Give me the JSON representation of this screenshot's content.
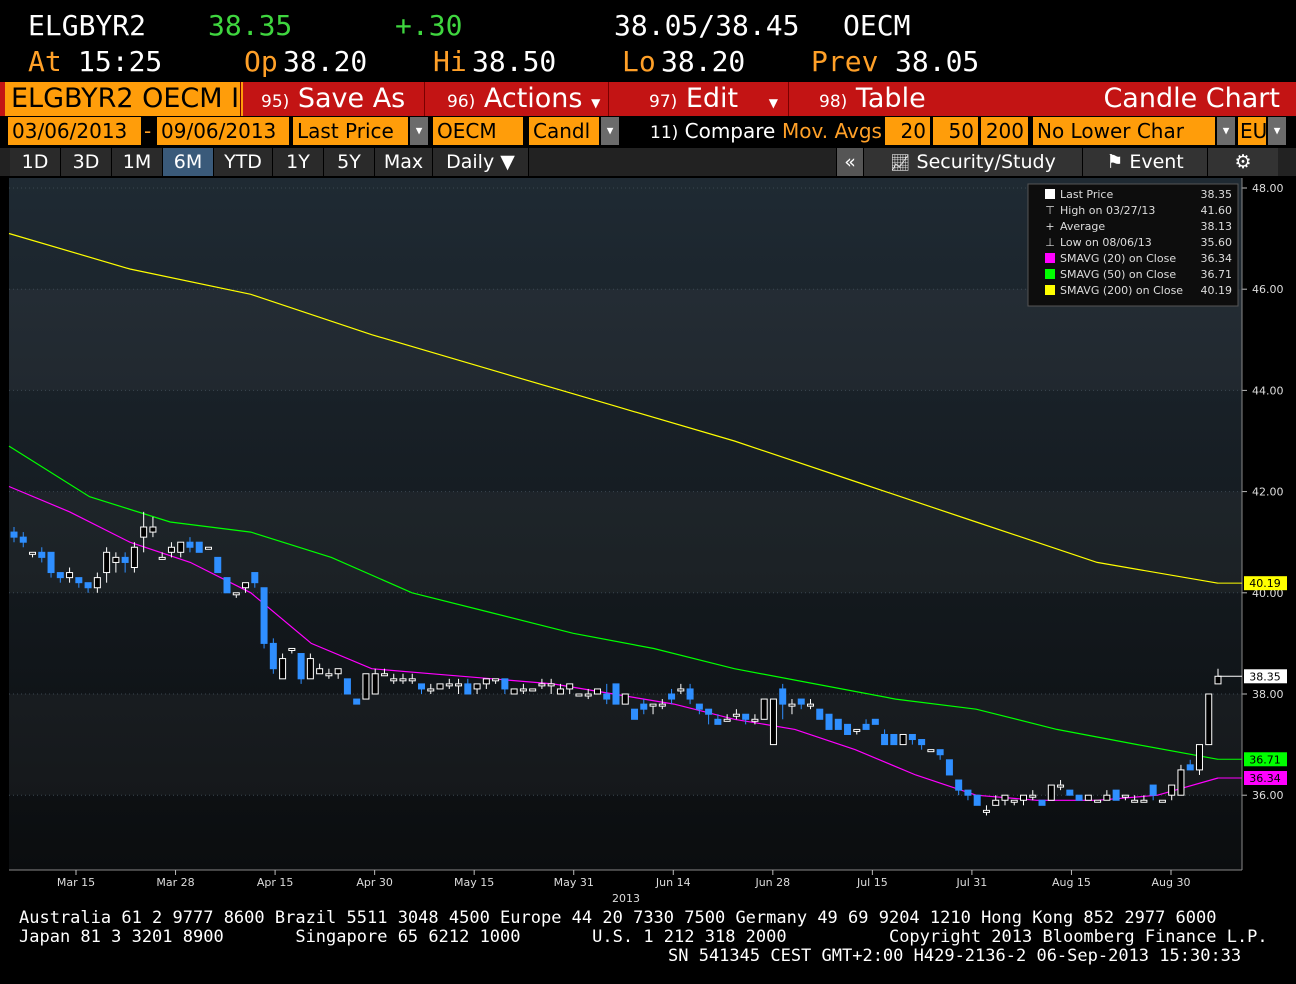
{
  "quote": {
    "ticker": "ELGBYR2",
    "last": "38.35",
    "change": "+.30",
    "bid_ask": "38.05/38.45",
    "source": "OECM",
    "at_label": "At",
    "time": "15:25",
    "open_label": "Op",
    "open": "38.20",
    "high_label": "Hi",
    "high": "38.50",
    "low_label": "Lo",
    "low": "38.20",
    "prev_label": "Prev",
    "prev": "38.05"
  },
  "toolbar": {
    "security": "ELGBYR2 OECM I",
    "save_num": "95)",
    "save_label": "Save As",
    "actions_num": "96)",
    "actions_label": "Actions",
    "edit_num": "97)",
    "edit_label": "Edit",
    "table_num": "98)",
    "table_label": "Table",
    "chart_type": "Candle Chart"
  },
  "params": {
    "start_date": "03/06/2013",
    "dash": "-",
    "end_date": "09/06/2013",
    "price_field": "Last Price",
    "source": "OECM",
    "chart_style": "Candl",
    "compare_num": "11)",
    "compare_label": "Compare",
    "mov_avgs_label": "Mov. Avgs",
    "ma1": "20",
    "ma2": "50",
    "ma3": "200",
    "lower_chart": "No Lower Char",
    "currency": "EUR"
  },
  "range": {
    "buttons": [
      "1D",
      "3D",
      "1M",
      "6M",
      "YTD",
      "1Y",
      "5Y",
      "Max"
    ],
    "active": "6M",
    "period": "Daily ▼",
    "collapse": "«",
    "security_study": "Security/Study",
    "event": "Event",
    "settings_icon": "gear-icon"
  },
  "legend": {
    "rows": [
      {
        "label": "Last Price",
        "value": "38.35",
        "color": "#ffffff"
      },
      {
        "label": "High on 03/27/13",
        "value": "41.60",
        "color": ""
      },
      {
        "label": "Average",
        "value": "38.13",
        "color": ""
      },
      {
        "label": "Low on 08/06/13",
        "value": "35.60",
        "color": ""
      },
      {
        "label": "SMAVG (20) on Close",
        "value": "36.34",
        "color": "#ff00ff"
      },
      {
        "label": "SMAVG (50) on Close",
        "value": "36.71",
        "color": "#00ff00"
      },
      {
        "label": "SMAVG (200) on Close",
        "value": "40.19",
        "color": "#ffff00"
      }
    ]
  },
  "chart_data": {
    "type": "candlestick",
    "y_ticks": [
      "36.00",
      "38.00",
      "40.00",
      "42.00",
      "44.00",
      "46.00",
      "48.00"
    ],
    "ylim": [
      34.5,
      48.1
    ],
    "x_ticks": [
      "Mar 15",
      "Mar 28",
      "Apr 15",
      "Apr 30",
      "May 15",
      "May 31",
      "Jun 14",
      "Jun 28",
      "Jul 15",
      "Jul 31",
      "Aug 15",
      "Aug 30"
    ],
    "year_label": "2013",
    "tags": [
      {
        "value": 40.19,
        "label": "40.19",
        "color": "#ffff00"
      },
      {
        "value": 38.35,
        "label": "38.35",
        "color": "#ffffff"
      },
      {
        "value": 36.71,
        "label": "36.71",
        "color": "#00ff00"
      },
      {
        "value": 36.34,
        "label": "36.34",
        "color": "#ff00ff"
      }
    ],
    "series": [
      {
        "name": "SMAVG (200) on Close",
        "color": "#ffff00",
        "values": [
          47.1,
          46.4,
          45.9,
          45.1,
          44.4,
          43.7,
          43.0,
          42.2,
          41.4,
          40.6,
          40.19
        ]
      },
      {
        "name": "SMAVG (50) on Close",
        "color": "#00ff00",
        "values": [
          42.9,
          41.9,
          41.4,
          41.2,
          40.7,
          40.0,
          39.6,
          39.2,
          38.9,
          38.5,
          38.2,
          37.9,
          37.7,
          37.3,
          37.0,
          36.71
        ]
      },
      {
        "name": "SMAVG (20) on Close",
        "color": "#ff00ff",
        "values": [
          42.1,
          41.6,
          41.0,
          40.6,
          40.0,
          39.0,
          38.5,
          38.4,
          38.3,
          38.2,
          38.0,
          37.8,
          37.5,
          37.3,
          36.9,
          36.4,
          36.0,
          35.9,
          35.9,
          36.0,
          36.34
        ]
      }
    ],
    "candles": [
      [
        41.2,
        41.3,
        41.0,
        41.1
      ],
      [
        41.1,
        41.2,
        40.9,
        41.0
      ],
      [
        40.8,
        40.8,
        40.7,
        40.8
      ],
      [
        40.8,
        40.9,
        40.6,
        40.7
      ],
      [
        40.8,
        40.8,
        40.3,
        40.4
      ],
      [
        40.4,
        40.4,
        40.2,
        40.3
      ],
      [
        40.3,
        40.5,
        40.2,
        40.4
      ],
      [
        40.3,
        40.3,
        40.1,
        40.2
      ],
      [
        40.2,
        40.2,
        40.0,
        40.1
      ],
      [
        40.1,
        40.4,
        40.0,
        40.3
      ],
      [
        40.4,
        40.9,
        40.2,
        40.8
      ],
      [
        40.6,
        40.8,
        40.4,
        40.7
      ],
      [
        40.7,
        40.8,
        40.4,
        40.6
      ],
      [
        40.5,
        41.0,
        40.4,
        40.9
      ],
      [
        41.1,
        41.6,
        40.8,
        41.3
      ],
      [
        41.2,
        41.5,
        41.1,
        41.3
      ],
      [
        40.7,
        40.8,
        40.7,
        40.7
      ],
      [
        40.8,
        41.0,
        40.7,
        40.9
      ],
      [
        40.8,
        41.0,
        40.7,
        41.0
      ],
      [
        41.0,
        41.1,
        40.8,
        40.9
      ],
      [
        41.0,
        41.0,
        40.8,
        40.8
      ],
      [
        40.9,
        40.9,
        40.9,
        40.9
      ],
      [
        40.7,
        40.7,
        40.4,
        40.4
      ],
      [
        40.3,
        40.3,
        40.0,
        40.0
      ],
      [
        40.0,
        40.0,
        39.9,
        40.0
      ],
      [
        40.1,
        40.2,
        40.0,
        40.2
      ],
      [
        40.4,
        40.4,
        40.1,
        40.2
      ],
      [
        40.1,
        40.1,
        38.9,
        39.0
      ],
      [
        39.0,
        39.1,
        38.4,
        38.5
      ],
      [
        38.3,
        38.8,
        38.3,
        38.7
      ],
      [
        38.9,
        38.9,
        38.8,
        38.9
      ],
      [
        38.8,
        38.8,
        38.2,
        38.3
      ],
      [
        38.3,
        38.8,
        38.3,
        38.7
      ],
      [
        38.4,
        38.6,
        38.4,
        38.5
      ],
      [
        38.4,
        38.5,
        38.3,
        38.4
      ],
      [
        38.4,
        38.5,
        38.3,
        38.5
      ],
      [
        38.3,
        38.3,
        38.0,
        38.0
      ],
      [
        37.9,
        37.9,
        37.8,
        37.8
      ],
      [
        37.9,
        38.4,
        37.9,
        38.4
      ],
      [
        38.0,
        38.5,
        38.0,
        38.4
      ],
      [
        38.4,
        38.5,
        38.4,
        38.4
      ],
      [
        38.3,
        38.4,
        38.2,
        38.3
      ],
      [
        38.3,
        38.4,
        38.2,
        38.3
      ],
      [
        38.3,
        38.4,
        38.2,
        38.3
      ],
      [
        38.2,
        38.2,
        38.0,
        38.1
      ],
      [
        38.1,
        38.2,
        38.0,
        38.1
      ],
      [
        38.1,
        38.2,
        38.1,
        38.2
      ],
      [
        38.2,
        38.3,
        38.1,
        38.2
      ],
      [
        38.2,
        38.3,
        38.0,
        38.2
      ],
      [
        38.2,
        38.3,
        38.0,
        38.0
      ],
      [
        38.1,
        38.2,
        38.0,
        38.2
      ],
      [
        38.2,
        38.3,
        38.1,
        38.3
      ],
      [
        38.3,
        38.3,
        38.2,
        38.3
      ],
      [
        38.3,
        38.3,
        38.0,
        38.1
      ],
      [
        38.0,
        38.1,
        38.0,
        38.1
      ],
      [
        38.1,
        38.2,
        38.0,
        38.1
      ],
      [
        38.1,
        38.1,
        38.1,
        38.1
      ],
      [
        38.2,
        38.3,
        38.1,
        38.2
      ],
      [
        38.2,
        38.3,
        38.0,
        38.2
      ],
      [
        38.0,
        38.2,
        38.0,
        38.1
      ],
      [
        38.1,
        38.2,
        38.0,
        38.2
      ],
      [
        38.0,
        38.0,
        38.0,
        38.0
      ],
      [
        38.0,
        38.1,
        37.9,
        38.0
      ],
      [
        38.0,
        38.1,
        38.0,
        38.1
      ],
      [
        38.0,
        38.2,
        37.8,
        37.9
      ],
      [
        38.2,
        38.2,
        37.8,
        37.8
      ],
      [
        37.8,
        38.0,
        37.8,
        38.0
      ],
      [
        37.7,
        37.7,
        37.5,
        37.5
      ],
      [
        37.8,
        37.9,
        37.6,
        37.7
      ],
      [
        37.8,
        37.8,
        37.6,
        37.8
      ],
      [
        37.8,
        37.9,
        37.7,
        37.8
      ],
      [
        38.0,
        38.1,
        37.8,
        37.9
      ],
      [
        38.1,
        38.2,
        38.0,
        38.1
      ],
      [
        38.1,
        38.2,
        37.8,
        37.9
      ],
      [
        37.8,
        37.8,
        37.6,
        37.7
      ],
      [
        37.7,
        37.7,
        37.4,
        37.6
      ],
      [
        37.5,
        37.6,
        37.4,
        37.4
      ],
      [
        37.5,
        37.6,
        37.5,
        37.5
      ],
      [
        37.6,
        37.7,
        37.5,
        37.6
      ],
      [
        37.6,
        37.6,
        37.4,
        37.5
      ],
      [
        37.5,
        37.6,
        37.4,
        37.5
      ],
      [
        37.5,
        37.9,
        37.5,
        37.9
      ],
      [
        37.0,
        37.9,
        37.0,
        37.9
      ],
      [
        38.1,
        38.2,
        37.5,
        37.8
      ],
      [
        37.8,
        37.9,
        37.6,
        37.8
      ],
      [
        37.9,
        37.9,
        37.7,
        37.8
      ],
      [
        37.8,
        37.9,
        37.7,
        37.8
      ],
      [
        37.7,
        37.7,
        37.5,
        37.5
      ],
      [
        37.6,
        37.6,
        37.3,
        37.3
      ],
      [
        37.5,
        37.5,
        37.3,
        37.3
      ],
      [
        37.4,
        37.4,
        37.2,
        37.2
      ],
      [
        37.3,
        37.3,
        37.2,
        37.3
      ],
      [
        37.4,
        37.5,
        37.3,
        37.3
      ],
      [
        37.5,
        37.5,
        37.4,
        37.4
      ],
      [
        37.2,
        37.3,
        37.0,
        37.0
      ],
      [
        37.2,
        37.2,
        37.0,
        37.0
      ],
      [
        37.0,
        37.2,
        37.0,
        37.2
      ],
      [
        37.2,
        37.2,
        37.0,
        37.1
      ],
      [
        37.1,
        37.1,
        36.9,
        37.0
      ],
      [
        36.9,
        36.9,
        36.9,
        36.9
      ],
      [
        36.9,
        36.9,
        36.7,
        36.8
      ],
      [
        36.7,
        36.7,
        36.4,
        36.4
      ],
      [
        36.3,
        36.3,
        36.0,
        36.1
      ],
      [
        36.1,
        36.1,
        35.9,
        36.0
      ],
      [
        36.0,
        36.0,
        35.8,
        35.8
      ],
      [
        35.7,
        35.8,
        35.6,
        35.7
      ],
      [
        35.8,
        36.0,
        35.8,
        35.9
      ],
      [
        35.9,
        36.0,
        35.8,
        36.0
      ],
      [
        35.9,
        35.9,
        35.8,
        35.9
      ],
      [
        35.9,
        36.0,
        35.8,
        36.0
      ],
      [
        36.0,
        36.1,
        35.9,
        36.0
      ],
      [
        35.9,
        35.9,
        35.8,
        35.8
      ],
      [
        35.9,
        36.2,
        35.9,
        36.2
      ],
      [
        36.2,
        36.3,
        36.1,
        36.2
      ],
      [
        36.1,
        36.1,
        36.0,
        36.0
      ],
      [
        36.0,
        36.0,
        35.9,
        35.9
      ],
      [
        35.9,
        36.0,
        35.9,
        36.0
      ],
      [
        35.9,
        35.9,
        35.9,
        35.9
      ],
      [
        35.9,
        36.1,
        35.9,
        36.0
      ],
      [
        36.1,
        36.1,
        35.9,
        35.9
      ],
      [
        36.0,
        36.0,
        35.9,
        36.0
      ],
      [
        35.9,
        36.0,
        35.9,
        35.9
      ],
      [
        35.9,
        36.0,
        35.9,
        35.9
      ],
      [
        36.2,
        36.2,
        35.9,
        36.0
      ],
      [
        35.9,
        35.9,
        35.9,
        35.9
      ],
      [
        36.0,
        36.2,
        35.9,
        36.2
      ],
      [
        36.0,
        36.6,
        36.0,
        36.5
      ],
      [
        36.6,
        36.7,
        36.5,
        36.5
      ],
      [
        36.5,
        37.0,
        36.4,
        37.0
      ],
      [
        37.0,
        38.0,
        37.0,
        38.0
      ],
      [
        38.2,
        38.5,
        38.2,
        38.35
      ]
    ]
  },
  "footer": {
    "line1": "Australia 61 2 9777 8600 Brazil 5511 3048 4500 Europe 44 20 7330 7500 Germany 49 69 9204 1210 Hong Kong 852 2977 6000",
    "line2": "Japan 81 3 3201 8900       Singapore 65 6212 1000       U.S. 1 212 318 2000          Copyright 2013 Bloomberg Finance L.P.",
    "line3": "SN 541345 CEST GMT+2:00 H429-2136-2 06-Sep-2013 15:30:33"
  }
}
